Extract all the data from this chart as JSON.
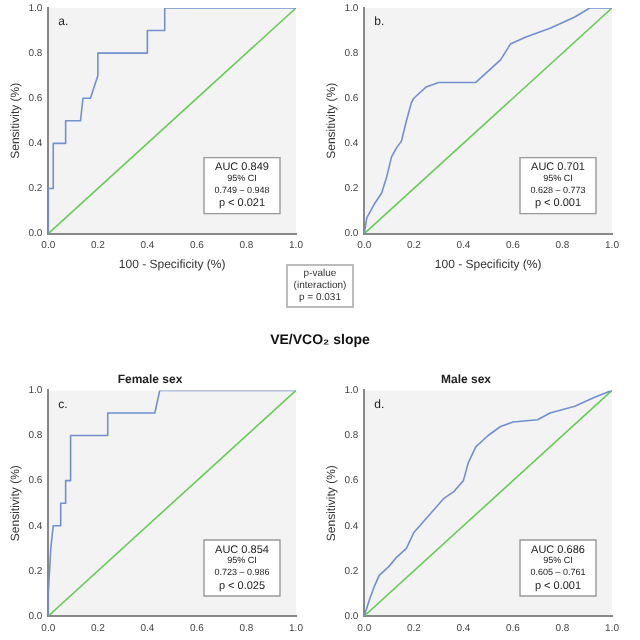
{
  "chart_data": [
    {
      "type": "line",
      "xlabel": "100 - Specificity (%)",
      "ylabel": "Sensitivity (%)",
      "xlim": [
        0,
        1
      ],
      "ylim": [
        0,
        1
      ],
      "xticks": [
        {
          "value": 0,
          "label": "0.0"
        },
        {
          "value": 0.2,
          "label": "0.2"
        },
        {
          "value": 0.4,
          "label": "0.4"
        },
        {
          "value": 0.6,
          "label": "0.6"
        },
        {
          "value": 0.8,
          "label": "0.8"
        },
        {
          "value": 1,
          "label": "1.0"
        }
      ],
      "yticks": [
        {
          "value": 0,
          "label": "0.0"
        },
        {
          "value": 0.2,
          "label": "0.2"
        },
        {
          "value": 0.4,
          "label": "0.4"
        },
        {
          "value": 0.6,
          "label": "0.6"
        },
        {
          "value": 0.8,
          "label": "0.8"
        },
        {
          "value": 1,
          "label": "1.0"
        }
      ],
      "grid": false,
      "legend": false,
      "marker": "none",
      "annotations": [
        "a.",
        "AUC 0.849",
        "95% CI",
        "0.749 – 0.948",
        "p < 0.021"
      ],
      "series": [
        {
          "type": "line",
          "color": "#7090d0",
          "x": [
            0,
            0,
            0.02,
            0.02,
            0.07,
            0.07,
            0.13,
            0.14,
            0.17,
            0.2,
            0.2,
            0.4,
            0.4,
            0.47,
            0.47,
            1
          ],
          "values": [
            0,
            0.2,
            0.2,
            0.4,
            0.4,
            0.5,
            0.5,
            0.6,
            0.6,
            0.7,
            0.8,
            0.8,
            0.9,
            0.9,
            1,
            1
          ]
        },
        {
          "type": "line",
          "color": "#66cc55",
          "x": [
            0,
            1
          ],
          "values": [
            0,
            1
          ]
        }
      ]
    },
    {
      "type": "line",
      "xlabel": "100 - Specificity (%)",
      "ylabel": "Sensitivity (%)",
      "xlim": [
        0,
        1
      ],
      "ylim": [
        0,
        1
      ],
      "xticks": [
        {
          "value": 0,
          "label": "0.0"
        },
        {
          "value": 0.2,
          "label": "0.2"
        },
        {
          "value": 0.4,
          "label": "0.4"
        },
        {
          "value": 0.6,
          "label": "0.6"
        },
        {
          "value": 0.8,
          "label": "0.8"
        },
        {
          "value": 1,
          "label": "1.0"
        }
      ],
      "yticks": [
        {
          "value": 0,
          "label": "0.0"
        },
        {
          "value": 0.2,
          "label": "0.2"
        },
        {
          "value": 0.4,
          "label": "0.4"
        },
        {
          "value": 0.6,
          "label": "0.6"
        },
        {
          "value": 0.8,
          "label": "0.8"
        },
        {
          "value": 1,
          "label": "1.0"
        }
      ],
      "grid": false,
      "legend": false,
      "marker": "none",
      "annotations": [
        "b.",
        "AUC 0.701",
        "95% CI",
        "0.628 – 0.773",
        "p < 0.001"
      ],
      "series": [
        {
          "type": "line",
          "color": "#7090d0",
          "x": [
            0,
            0.01,
            0.04,
            0.07,
            0.09,
            0.11,
            0.13,
            0.15,
            0.17,
            0.19,
            0.2,
            0.25,
            0.3,
            0.45,
            0.5,
            0.55,
            0.59,
            0.65,
            0.75,
            0.85,
            0.91,
            1
          ],
          "values": [
            0,
            0.07,
            0.13,
            0.18,
            0.25,
            0.34,
            0.38,
            0.41,
            0.5,
            0.58,
            0.6,
            0.65,
            0.67,
            0.67,
            0.72,
            0.77,
            0.84,
            0.87,
            0.91,
            0.96,
            1,
            1
          ]
        },
        {
          "type": "line",
          "color": "#66cc55",
          "x": [
            0,
            1
          ],
          "values": [
            0,
            1
          ]
        }
      ]
    },
    {
      "type": "other",
      "title": "VE/VCO₂ slope",
      "annotations": [
        "p-value",
        "(interaction)",
        "p = 0.031"
      ]
    },
    {
      "type": "line",
      "title": "Female sex",
      "ylabel": "Sensitivity (%)",
      "xlim": [
        0,
        1
      ],
      "ylim": [
        0,
        1
      ],
      "xticks": [
        {
          "value": 0,
          "label": "0.0"
        },
        {
          "value": 0.2,
          "label": "0.2"
        },
        {
          "value": 0.4,
          "label": "0.4"
        },
        {
          "value": 0.6,
          "label": "0.6"
        },
        {
          "value": 0.8,
          "label": "0.8"
        },
        {
          "value": 1,
          "label": "1.0"
        }
      ],
      "yticks": [
        {
          "value": 0,
          "label": "0.0"
        },
        {
          "value": 0.2,
          "label": "0.2"
        },
        {
          "value": 0.4,
          "label": "0.4"
        },
        {
          "value": 0.6,
          "label": "0.6"
        },
        {
          "value": 0.8,
          "label": "0.8"
        },
        {
          "value": 1,
          "label": "1.0"
        }
      ],
      "grid": false,
      "legend": false,
      "marker": "none",
      "annotations": [
        "c.",
        "AUC 0.854",
        "95% CI",
        "0.723 – 0.986",
        "p < 0.025"
      ],
      "series": [
        {
          "type": "line",
          "color": "#7090d0",
          "x": [
            0,
            0,
            0.01,
            0.02,
            0.05,
            0.05,
            0.07,
            0.07,
            0.09,
            0.09,
            0.24,
            0.24,
            0.43,
            0.45,
            1
          ],
          "values": [
            0,
            0.1,
            0.3,
            0.4,
            0.4,
            0.5,
            0.5,
            0.6,
            0.6,
            0.8,
            0.8,
            0.9,
            0.9,
            1,
            1
          ]
        },
        {
          "type": "line",
          "color": "#66cc55",
          "x": [
            0,
            1
          ],
          "values": [
            0,
            1
          ]
        }
      ]
    },
    {
      "type": "line",
      "title": "Male sex",
      "ylabel": "Sensitivity (%)",
      "xlim": [
        0,
        1
      ],
      "ylim": [
        0,
        1
      ],
      "xticks": [
        {
          "value": 0,
          "label": "0.0"
        },
        {
          "value": 0.2,
          "label": "0.2"
        },
        {
          "value": 0.4,
          "label": "0.4"
        },
        {
          "value": 0.6,
          "label": "0.6"
        },
        {
          "value": 0.8,
          "label": "0.8"
        },
        {
          "value": 1,
          "label": "1.0"
        }
      ],
      "yticks": [
        {
          "value": 0,
          "label": "0.0"
        },
        {
          "value": 0.2,
          "label": "0.2"
        },
        {
          "value": 0.4,
          "label": "0.4"
        },
        {
          "value": 0.6,
          "label": "0.6"
        },
        {
          "value": 0.8,
          "label": "0.8"
        },
        {
          "value": 1,
          "label": "1.0"
        }
      ],
      "grid": false,
      "legend": false,
      "marker": "none",
      "annotations": [
        "d.",
        "AUC 0.686",
        "95% CI",
        "0.605 – 0.761",
        "p < 0.001"
      ],
      "series": [
        {
          "type": "line",
          "color": "#7090d0",
          "x": [
            0,
            0.02,
            0.04,
            0.06,
            0.1,
            0.13,
            0.17,
            0.2,
            0.24,
            0.28,
            0.32,
            0.36,
            0.4,
            0.42,
            0.45,
            0.5,
            0.55,
            0.6,
            0.7,
            0.75,
            0.85,
            0.93,
            1
          ],
          "values": [
            0,
            0.07,
            0.13,
            0.18,
            0.22,
            0.26,
            0.3,
            0.37,
            0.42,
            0.47,
            0.52,
            0.55,
            0.6,
            0.68,
            0.75,
            0.8,
            0.84,
            0.86,
            0.87,
            0.9,
            0.93,
            0.97,
            1
          ]
        },
        {
          "type": "line",
          "color": "#66cc55",
          "x": [
            0,
            1
          ],
          "values": [
            0,
            1
          ]
        }
      ]
    }
  ]
}
